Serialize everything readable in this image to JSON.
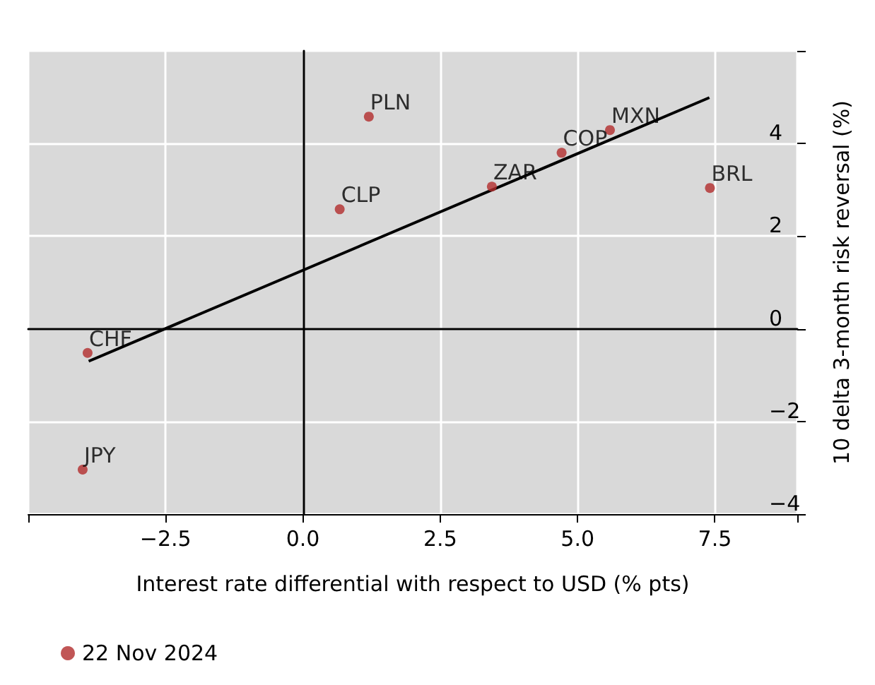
{
  "chart_data": {
    "type": "scatter",
    "xlabel": "Interest rate differential with respect to USD (% pts)",
    "ylabel": "10 delta 3-month risk reversal (%)",
    "xlim": [
      -5,
      9
    ],
    "ylim": [
      -4,
      6
    ],
    "xticks": [
      {
        "value": -2.5,
        "label": "−2.5"
      },
      {
        "value": 0,
        "label": "0.0"
      },
      {
        "value": 2.5,
        "label": "2.5"
      },
      {
        "value": 5,
        "label": "5.0"
      },
      {
        "value": 7.5,
        "label": "7.5"
      }
    ],
    "yticks": [
      {
        "value": -4,
        "label": "−4"
      },
      {
        "value": -2,
        "label": "−2"
      },
      0,
      2,
      4
    ],
    "series": [
      {
        "name": "22 Nov 2024",
        "color": "#b22c2c",
        "marker": "circle",
        "x": [
          1.2,
          5.59,
          4.71,
          7.41,
          3.44,
          0.67,
          -3.92,
          -4.01
        ],
        "values": [
          4.58,
          4.29,
          3.8,
          3.04,
          3.07,
          2.58,
          -0.52,
          -3.04
        ]
      },
      {
        "type": "line",
        "color": "#000000",
        "marker": "none",
        "line_style": "solid",
        "x": [
          -3.9,
          7.4
        ],
        "values": [
          -0.7,
          4.99
        ]
      }
    ],
    "annotations": [
      {
        "text": "PLN",
        "x": 1.2,
        "y": 4.58
      },
      {
        "text": "MXN",
        "x": 5.59,
        "y": 4.29
      },
      {
        "text": "COP",
        "x": 4.71,
        "y": 3.8
      },
      {
        "text": "BRL",
        "x": 7.41,
        "y": 3.04
      },
      {
        "text": "ZAR",
        "x": 3.44,
        "y": 3.07
      },
      {
        "text": "CLP",
        "x": 0.67,
        "y": 2.58
      },
      {
        "text": "CHF",
        "x": -3.92,
        "y": -0.52
      },
      {
        "text": "JPY",
        "x": -4.01,
        "y": -3.04
      }
    ],
    "grid": true,
    "legend": "bottom left"
  }
}
